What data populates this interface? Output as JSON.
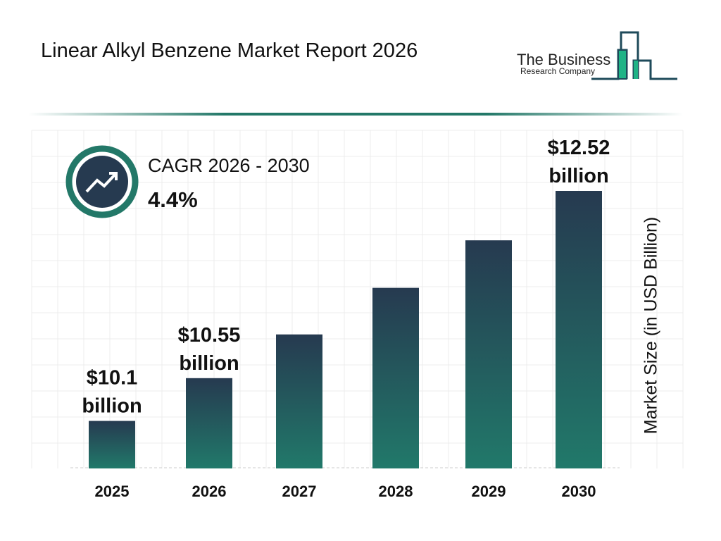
{
  "title": "Linear Alkyl Benzene Market Report 2026",
  "logo": {
    "line1": "The Business",
    "line2": "Research Company"
  },
  "cagr": {
    "label": "CAGR 2026 - 2030",
    "value": "4.4%"
  },
  "colors": {
    "bar_top": "#263a50",
    "bar_bottom": "#21796a",
    "accent": "#237868"
  },
  "chart_data": {
    "type": "bar",
    "categories": [
      "2025",
      "2026",
      "2027",
      "2028",
      "2029",
      "2030"
    ],
    "values": [
      10.1,
      10.55,
      11.01,
      11.5,
      12.0,
      12.52
    ],
    "data_labels": [
      [
        "$10.1",
        "billion"
      ],
      [
        "$10.55",
        "billion"
      ],
      null,
      null,
      null,
      [
        "$12.52",
        "billion"
      ]
    ],
    "xlabel": "",
    "ylabel": "Market Size (in USD Billion)",
    "ylim": [
      9.6,
      12.52
    ],
    "grid": true
  }
}
